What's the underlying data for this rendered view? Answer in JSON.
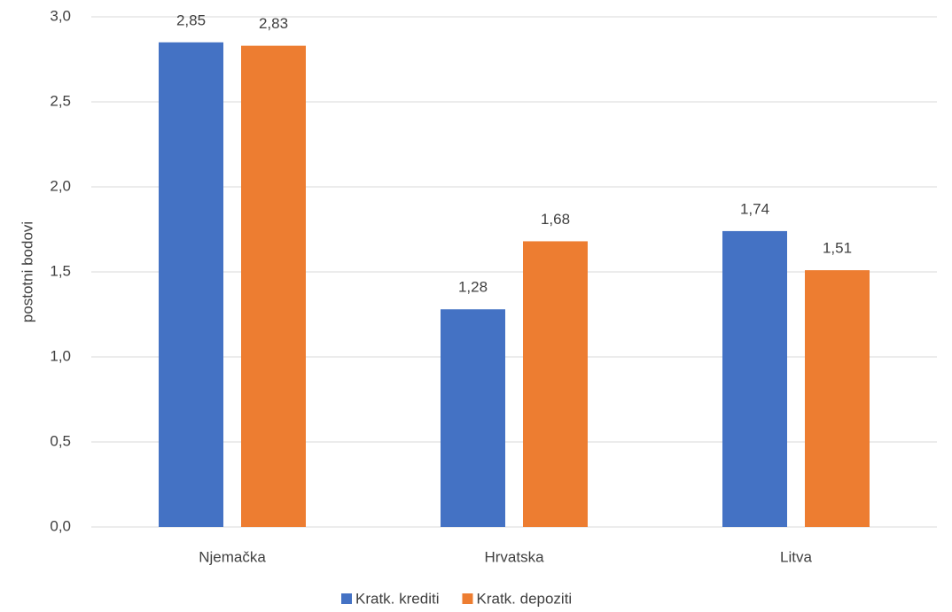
{
  "chart_data": {
    "type": "bar",
    "y_label": "postotni bodovi",
    "categories": [
      "Njemačka",
      "Hrvatska",
      "Litva"
    ],
    "series": [
      {
        "name": "Kratk. krediti",
        "color": "#4472c4",
        "values": [
          2.85,
          1.28,
          1.74
        ],
        "value_labels": [
          "2,85",
          "1,28",
          "1,74"
        ]
      },
      {
        "name": "Kratk. depoziti",
        "color": "#ed7d31",
        "values": [
          2.83,
          1.68,
          1.51
        ],
        "value_labels": [
          "2,83",
          "1,68",
          "1,51"
        ]
      }
    ],
    "ylim": [
      0,
      3
    ],
    "yticks": [
      {
        "value": 0,
        "label": "0,0"
      },
      {
        "value": 0.5,
        "label": "0,5"
      },
      {
        "value": 1,
        "label": "1,0"
      },
      {
        "value": 1.5,
        "label": "1,5"
      },
      {
        "value": 2,
        "label": "2,0"
      },
      {
        "value": 2.5,
        "label": "2,5"
      },
      {
        "value": 3,
        "label": "3,0"
      }
    ],
    "grid": true,
    "legend": "bottom"
  }
}
